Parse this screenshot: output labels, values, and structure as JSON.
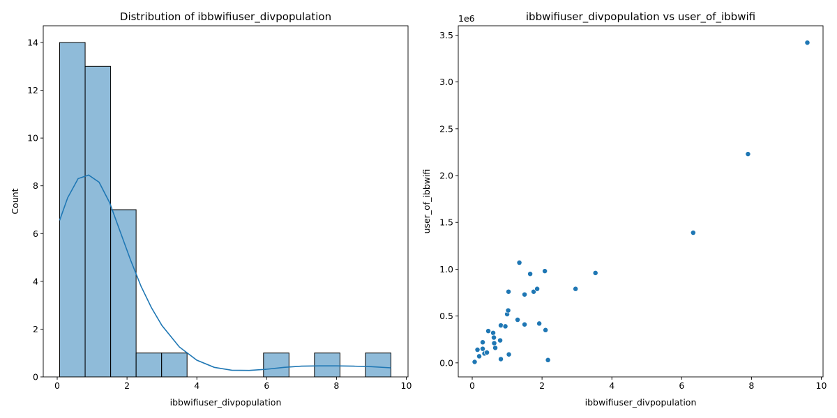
{
  "colors": {
    "bar_fill": "#1f77b4",
    "bar_fill_opacity": 0.5,
    "bar_edge": "#000000",
    "line": "#1f77b4",
    "point": "#1f77b4",
    "axes": "#000000"
  },
  "chart_data": [
    {
      "type": "bar",
      "subtype": "histogram with kde line",
      "title": "Distribution of ibbwifiuser_divpopulation",
      "xlabel": "ibbwifiuser_divpopulation",
      "ylabel": "Count",
      "xlim": [
        -0.4,
        10.05
      ],
      "ylim": [
        0,
        14.7
      ],
      "xticks": [
        0,
        2,
        4,
        6,
        8,
        10
      ],
      "xtick_labels": [
        "0",
        "2",
        "4",
        "6",
        "8",
        "10"
      ],
      "yticks": [
        0,
        2,
        4,
        6,
        8,
        10,
        12,
        14
      ],
      "ytick_labels": [
        "0",
        "2",
        "4",
        "6",
        "8",
        "10",
        "12",
        "14"
      ],
      "grid": false,
      "bin_edges": [
        0.07,
        0.8,
        1.53,
        2.26,
        2.99,
        3.72,
        4.45,
        5.18,
        5.91,
        6.64,
        7.37,
        8.1,
        8.83,
        9.56
      ],
      "counts": [
        14,
        13,
        7,
        1,
        1,
        0,
        0,
        0,
        1,
        0,
        1,
        0,
        1
      ],
      "kde": {
        "x": [
          0.07,
          0.3,
          0.6,
          0.9,
          1.2,
          1.5,
          1.8,
          2.1,
          2.4,
          2.7,
          3.0,
          3.5,
          4.0,
          4.5,
          5.0,
          5.5,
          6.0,
          6.5,
          7.0,
          7.5,
          8.0,
          8.5,
          9.0,
          9.56
        ],
        "y": [
          6.55,
          7.5,
          8.3,
          8.45,
          8.15,
          7.3,
          6.1,
          4.9,
          3.8,
          2.9,
          2.15,
          1.25,
          0.7,
          0.4,
          0.28,
          0.27,
          0.32,
          0.4,
          0.45,
          0.46,
          0.46,
          0.45,
          0.43,
          0.38
        ]
      }
    },
    {
      "type": "scatter",
      "title": "ibbwifiuser_divpopulation vs user_of_ibbwifi",
      "xlabel": "ibbwifiuser_divpopulation",
      "ylabel": "user_of_ibbwifi",
      "offset_text": "1e6",
      "xlim": [
        -0.4,
        10.05
      ],
      "ylim": [
        -0.15,
        3.6
      ],
      "xticks": [
        0,
        2,
        4,
        6,
        8,
        10
      ],
      "xtick_labels": [
        "0",
        "2",
        "4",
        "6",
        "8",
        "10"
      ],
      "yticks": [
        0.0,
        0.5,
        1.0,
        1.5,
        2.0,
        2.5,
        3.0,
        3.5
      ],
      "ytick_labels": [
        "0.0",
        "0.5",
        "1.0",
        "1.5",
        "2.0",
        "2.5",
        "3.0",
        "3.5"
      ],
      "grid": false,
      "points": [
        [
          0.07,
          0.01
        ],
        [
          0.15,
          0.14
        ],
        [
          0.2,
          0.07
        ],
        [
          0.3,
          0.22
        ],
        [
          0.3,
          0.15
        ],
        [
          0.35,
          0.1
        ],
        [
          0.42,
          0.11
        ],
        [
          0.46,
          0.34
        ],
        [
          0.6,
          0.32
        ],
        [
          0.62,
          0.27
        ],
        [
          0.63,
          0.21
        ],
        [
          0.66,
          0.16
        ],
        [
          0.8,
          0.24
        ],
        [
          0.82,
          0.04
        ],
        [
          0.82,
          0.4
        ],
        [
          0.95,
          0.39
        ],
        [
          1.0,
          0.52
        ],
        [
          1.03,
          0.56
        ],
        [
          1.04,
          0.76
        ],
        [
          1.05,
          0.09
        ],
        [
          1.3,
          0.46
        ],
        [
          1.35,
          1.07
        ],
        [
          1.5,
          0.41
        ],
        [
          1.5,
          0.73
        ],
        [
          1.66,
          0.95
        ],
        [
          1.76,
          0.76
        ],
        [
          1.86,
          0.79
        ],
        [
          1.92,
          0.42
        ],
        [
          2.08,
          0.98
        ],
        [
          2.1,
          0.35
        ],
        [
          2.17,
          0.03
        ],
        [
          2.96,
          0.79
        ],
        [
          3.53,
          0.96
        ],
        [
          6.33,
          1.39
        ],
        [
          7.9,
          2.23
        ],
        [
          9.6,
          3.42
        ]
      ]
    }
  ]
}
